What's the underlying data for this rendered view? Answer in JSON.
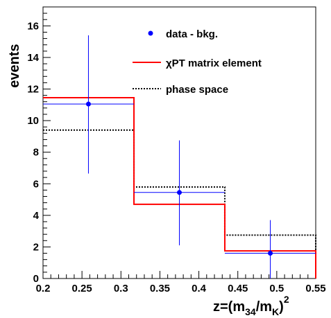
{
  "chart_data": {
    "type": "histogram",
    "xlabel_base": "z=(m",
    "xlabel_sub1": "34",
    "xlabel_mid": "/m",
    "xlabel_sub2": "K",
    "xlabel_close": ")",
    "xlabel_sup": "2",
    "ylabel": "events",
    "xlim": [
      0.2,
      0.55
    ],
    "ylim": [
      0,
      17.2
    ],
    "x_ticks": [
      "0.2",
      "0.25",
      "0.3",
      "0.35",
      "0.4",
      "0.45",
      "0.5",
      "0.55"
    ],
    "y_ticks": [
      "0",
      "2",
      "4",
      "6",
      "8",
      "10",
      "12",
      "14",
      "16"
    ],
    "bin_edges": [
      0.2,
      0.3167,
      0.4333,
      0.55
    ],
    "series": [
      {
        "name": "data - bkg.",
        "kind": "points",
        "color": "#0000ff",
        "x": [
          0.2583,
          0.375,
          0.4917
        ],
        "y": [
          11.05,
          5.45,
          1.6
        ],
        "err_low": [
          4.4,
          3.35,
          1.6
        ],
        "err_high": [
          4.35,
          3.3,
          2.1
        ]
      },
      {
        "name": "χPT matrix element",
        "kind": "step",
        "color": "#ff0000",
        "values": [
          11.45,
          4.7,
          1.75
        ]
      },
      {
        "name": "phase space",
        "kind": "step-dotted",
        "color": "#000000",
        "values": [
          9.4,
          5.8,
          2.75
        ]
      }
    ],
    "legend_position": "top-right"
  }
}
